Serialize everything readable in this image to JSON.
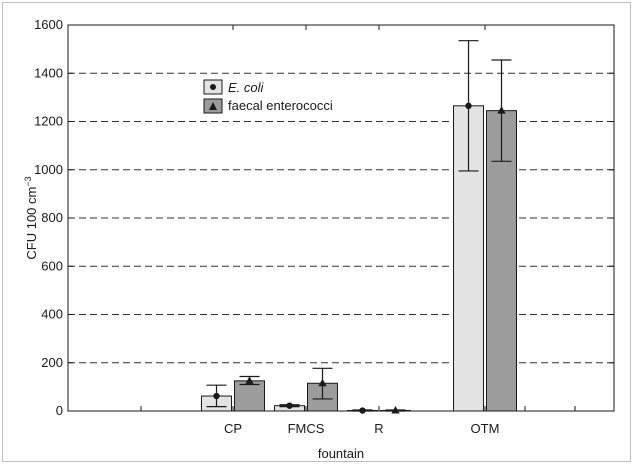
{
  "chart_data": {
    "type": "bar",
    "title": "",
    "xlabel": "fountain",
    "ylabel": "CFU 100 cm",
    "ylabel_superscript": "−3",
    "categories": [
      "CP",
      "FMCS",
      "R",
      "OTM"
    ],
    "ylim": [
      0,
      1600
    ],
    "yticks": [
      0,
      200,
      400,
      600,
      800,
      1000,
      1200,
      1400,
      1600
    ],
    "grid": "horizontal dashed",
    "legend_position": "top-left",
    "series": [
      {
        "name": "E. coli",
        "color": "#e3e3e3",
        "marker": "circle",
        "values": [
          62,
          22,
          2,
          1265
        ],
        "error_low": [
          18,
          18,
          0,
          995
        ],
        "error_high": [
          107,
          26,
          4,
          1535
        ]
      },
      {
        "name": "faecal enterococci",
        "color": "#9c9c9c",
        "marker": "triangle",
        "values": [
          125,
          115,
          2,
          1245
        ],
        "error_low": [
          110,
          50,
          0,
          1035
        ],
        "error_high": [
          143,
          177,
          4,
          1455
        ]
      }
    ]
  }
}
